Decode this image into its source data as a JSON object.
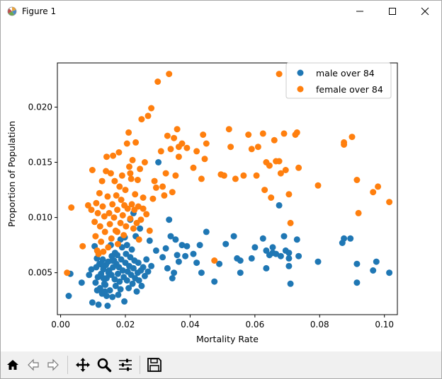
{
  "window": {
    "title": "Figure 1",
    "icons": {
      "minimize": "minimize-icon",
      "maximize": "maximize-icon",
      "close": "close-icon"
    }
  },
  "toolbar": {
    "buttons": [
      {
        "name": "home-button",
        "icon": "home-icon"
      },
      {
        "name": "back-button",
        "icon": "back-arrow-icon"
      },
      {
        "name": "forward-button",
        "icon": "forward-arrow-icon"
      },
      {
        "name": "pan-button",
        "icon": "pan-move-icon"
      },
      {
        "name": "zoom-button",
        "icon": "zoom-magnifier-icon"
      },
      {
        "name": "configure-subplots-button",
        "icon": "sliders-icon"
      },
      {
        "name": "save-button",
        "icon": "save-disk-icon"
      }
    ]
  },
  "chart_data": {
    "type": "scatter",
    "title": "",
    "xlabel": "Mortality Rate",
    "ylabel": "Proportion of Population",
    "xlim": [
      -0.001,
      0.104
    ],
    "ylim": [
      0.0012,
      0.024
    ],
    "xticks": [
      0.0,
      0.02,
      0.04,
      0.06,
      0.08,
      0.1
    ],
    "xtick_labels": [
      "0.00",
      "0.02",
      "0.04",
      "0.06",
      "0.08",
      "0.10"
    ],
    "yticks": [
      0.005,
      0.01,
      0.015,
      0.02
    ],
    "ytick_labels": [
      "0.005",
      "0.010",
      "0.015",
      "0.020"
    ],
    "grid": false,
    "legend": "top-right",
    "series": [
      {
        "name": "male over 84",
        "color": "#1f77b4",
        "points": [
          [
            0.0025,
            0.0029
          ],
          [
            0.003,
            0.0049
          ],
          [
            0.0065,
            0.0041
          ],
          [
            0.0088,
            0.0048
          ],
          [
            0.0095,
            0.0053
          ],
          [
            0.0098,
            0.0023
          ],
          [
            0.0105,
            0.0074
          ],
          [
            0.0108,
            0.0041
          ],
          [
            0.011,
            0.0055
          ],
          [
            0.0113,
            0.0034
          ],
          [
            0.0115,
            0.0046
          ],
          [
            0.0117,
            0.0021
          ],
          [
            0.012,
            0.0058
          ],
          [
            0.0122,
            0.0036
          ],
          [
            0.0125,
            0.0049
          ],
          [
            0.0128,
            0.0031
          ],
          [
            0.013,
            0.0062
          ],
          [
            0.0132,
            0.0053
          ],
          [
            0.0135,
            0.004
          ],
          [
            0.0137,
            0.0033
          ],
          [
            0.014,
            0.0057
          ],
          [
            0.0142,
            0.0045
          ],
          [
            0.0145,
            0.002
          ],
          [
            0.0147,
            0.006
          ],
          [
            0.015,
            0.0052
          ],
          [
            0.0152,
            0.0034
          ],
          [
            0.0155,
            0.0075
          ],
          [
            0.0157,
            0.0048
          ],
          [
            0.016,
            0.0028
          ],
          [
            0.0162,
            0.0055
          ],
          [
            0.0165,
            0.0061
          ],
          [
            0.0167,
            0.0044
          ],
          [
            0.017,
            0.0038
          ],
          [
            0.0172,
            0.0058
          ],
          [
            0.0175,
            0.0066
          ],
          [
            0.0177,
            0.0049
          ],
          [
            0.018,
            0.0055
          ],
          [
            0.0182,
            0.0042
          ],
          [
            0.0185,
            0.0035
          ],
          [
            0.0187,
            0.0062
          ],
          [
            0.019,
            0.0073
          ],
          [
            0.0192,
            0.0052
          ],
          [
            0.0195,
            0.0046
          ],
          [
            0.0197,
            0.0024
          ],
          [
            0.02,
            0.0059
          ],
          [
            0.0202,
            0.0067
          ],
          [
            0.0205,
            0.0043
          ],
          [
            0.0207,
            0.0051
          ],
          [
            0.021,
            0.0036
          ],
          [
            0.0212,
            0.0056
          ],
          [
            0.0215,
            0.0064
          ],
          [
            0.0218,
            0.0048
          ],
          [
            0.022,
            0.0071
          ],
          [
            0.0222,
            0.004
          ],
          [
            0.0225,
            0.0054
          ],
          [
            0.0228,
            0.0061
          ],
          [
            0.023,
            0.0045
          ],
          [
            0.0232,
            0.0083
          ],
          [
            0.0235,
            0.0033
          ],
          [
            0.0238,
            0.005
          ],
          [
            0.024,
            0.0059
          ],
          [
            0.0242,
            0.0043
          ],
          [
            0.0245,
            0.009
          ],
          [
            0.0248,
            0.0052
          ],
          [
            0.025,
            0.0038
          ],
          [
            0.0255,
            0.0055
          ],
          [
            0.026,
            0.0047
          ],
          [
            0.0265,
            0.0062
          ],
          [
            0.027,
            0.0051
          ],
          [
            0.0275,
            0.0079
          ],
          [
            0.028,
            0.0056
          ],
          [
            0.0185,
            0.008
          ],
          [
            0.0205,
            0.0075
          ],
          [
            0.0215,
            0.0098
          ],
          [
            0.0225,
            0.0104
          ],
          [
            0.016,
            0.0061
          ],
          [
            0.0148,
            0.005
          ],
          [
            0.0132,
            0.0045
          ],
          [
            0.0168,
            0.0068
          ],
          [
            0.0138,
            0.0039
          ],
          [
            0.0198,
            0.0082
          ],
          [
            0.0178,
            0.003
          ],
          [
            0.0158,
            0.0065
          ],
          [
            0.0112,
            0.0063
          ],
          [
            0.0128,
            0.0057
          ],
          [
            0.0142,
            0.0029
          ],
          [
            0.0302,
            0.015
          ],
          [
            0.0315,
            0.0064
          ],
          [
            0.033,
            0.0054
          ],
          [
            0.0335,
            0.0098
          ],
          [
            0.034,
            0.0083
          ],
          [
            0.0345,
            0.0045
          ],
          [
            0.035,
            0.005
          ],
          [
            0.0355,
            0.008
          ],
          [
            0.036,
            0.0066
          ],
          [
            0.0375,
            0.0075
          ],
          [
            0.039,
            0.0074
          ],
          [
            0.041,
            0.0067
          ],
          [
            0.042,
            0.0059
          ],
          [
            0.043,
            0.0075
          ],
          [
            0.0435,
            0.005
          ],
          [
            0.045,
            0.0087
          ],
          [
            0.0475,
            0.0042
          ],
          [
            0.049,
            0.0058
          ],
          [
            0.051,
            0.0076
          ],
          [
            0.0535,
            0.0083
          ],
          [
            0.0545,
            0.0063
          ],
          [
            0.0555,
            0.0061
          ],
          [
            0.0555,
            0.005
          ],
          [
            0.059,
            0.0063
          ],
          [
            0.06,
            0.0073
          ],
          [
            0.0625,
            0.0081
          ],
          [
            0.0635,
            0.0054
          ],
          [
            0.0635,
            0.007
          ],
          [
            0.0645,
            0.0066
          ],
          [
            0.0655,
            0.0073
          ],
          [
            0.0665,
            0.0067
          ],
          [
            0.0675,
            0.0111
          ],
          [
            0.068,
            0.0065
          ],
          [
            0.069,
            0.0083
          ],
          [
            0.0695,
            0.007
          ],
          [
            0.0705,
            0.0063
          ],
          [
            0.071,
            0.004
          ],
          [
            0.073,
            0.008
          ],
          [
            0.0735,
            0.0065
          ],
          [
            0.0795,
            0.006
          ],
          [
            0.087,
            0.0077
          ],
          [
            0.0875,
            0.0081
          ],
          [
            0.0895,
            0.0081
          ],
          [
            0.0915,
            0.0058
          ],
          [
            0.0915,
            0.0041
          ],
          [
            0.0965,
            0.0052
          ],
          [
            0.0975,
            0.006
          ],
          [
            0.1015,
            0.005
          ],
          [
            0.0705,
            0.0056
          ],
          [
            0.0655,
            0.0068
          ],
          [
            0.0705,
            0.0068
          ],
          [
            0.0295,
            0.007
          ],
          [
            0.0325,
            0.0072
          ],
          [
            0.0365,
            0.006
          ],
          [
            0.0385,
            0.0065
          ]
        ]
      },
      {
        "name": "female over 84",
        "color": "#ff7f0e",
        "points": [
          [
            0.002,
            0.005
          ],
          [
            0.0033,
            0.0109
          ],
          [
            0.0068,
            0.0074
          ],
          [
            0.0085,
            0.0111
          ],
          [
            0.0095,
            0.0107
          ],
          [
            0.0098,
            0.0143
          ],
          [
            0.0105,
            0.0096
          ],
          [
            0.0108,
            0.0083
          ],
          [
            0.011,
            0.0113
          ],
          [
            0.0113,
            0.007
          ],
          [
            0.0115,
            0.0104
          ],
          [
            0.0117,
            0.0067
          ],
          [
            0.012,
            0.0122
          ],
          [
            0.0122,
            0.0092
          ],
          [
            0.0125,
            0.0078
          ],
          [
            0.0128,
            0.0133
          ],
          [
            0.013,
            0.011
          ],
          [
            0.0132,
            0.0069
          ],
          [
            0.0135,
            0.0101
          ],
          [
            0.0137,
            0.0087
          ],
          [
            0.014,
            0.0142
          ],
          [
            0.0142,
            0.0155
          ],
          [
            0.0145,
            0.0119
          ],
          [
            0.0147,
            0.0073
          ],
          [
            0.015,
            0.0104
          ],
          [
            0.0152,
            0.0094
          ],
          [
            0.0155,
            0.014
          ],
          [
            0.0157,
            0.0081
          ],
          [
            0.016,
            0.0112
          ],
          [
            0.0162,
            0.0156
          ],
          [
            0.0165,
            0.01
          ],
          [
            0.0167,
            0.0133
          ],
          [
            0.017,
            0.0088
          ],
          [
            0.0172,
            0.012
          ],
          [
            0.0175,
            0.0107
          ],
          [
            0.0177,
            0.0076
          ],
          [
            0.018,
            0.0159
          ],
          [
            0.0182,
            0.0128
          ],
          [
            0.0185,
            0.0095
          ],
          [
            0.0187,
            0.0116
          ],
          [
            0.019,
            0.0138
          ],
          [
            0.0192,
            0.0102
          ],
          [
            0.0195,
            0.0084
          ],
          [
            0.0197,
            0.0111
          ],
          [
            0.02,
            0.0125
          ],
          [
            0.0202,
            0.0092
          ],
          [
            0.0205,
            0.0167
          ],
          [
            0.0207,
            0.0108
          ],
          [
            0.021,
            0.0177
          ],
          [
            0.0212,
            0.0146
          ],
          [
            0.0215,
            0.0099
          ],
          [
            0.0218,
            0.0135
          ],
          [
            0.022,
            0.0112
          ],
          [
            0.0222,
            0.0152
          ],
          [
            0.0225,
            0.009
          ],
          [
            0.0228,
            0.0107
          ],
          [
            0.023,
            0.0121
          ],
          [
            0.0232,
            0.0168
          ],
          [
            0.0235,
            0.0095
          ],
          [
            0.0238,
            0.0134
          ],
          [
            0.024,
            0.011
          ],
          [
            0.0242,
            0.008
          ],
          [
            0.0245,
            0.0144
          ],
          [
            0.0248,
            0.0098
          ],
          [
            0.025,
            0.0189
          ],
          [
            0.0255,
            0.0118
          ],
          [
            0.026,
            0.015
          ],
          [
            0.0265,
            0.0103
          ],
          [
            0.027,
            0.0192
          ],
          [
            0.0275,
            0.0088
          ],
          [
            0.028,
            0.0199
          ],
          [
            0.0285,
            0.0117
          ],
          [
            0.029,
            0.0133
          ],
          [
            0.0295,
            0.0127
          ],
          [
            0.03,
            0.0223
          ],
          [
            0.031,
            0.016
          ],
          [
            0.0315,
            0.0128
          ],
          [
            0.032,
            0.012
          ],
          [
            0.0325,
            0.014
          ],
          [
            0.033,
            0.0174
          ],
          [
            0.0335,
            0.023
          ],
          [
            0.034,
            0.0162
          ],
          [
            0.0345,
            0.0123
          ],
          [
            0.035,
            0.0172
          ],
          [
            0.0355,
            0.0138
          ],
          [
            0.036,
            0.018
          ],
          [
            0.0365,
            0.0164
          ],
          [
            0.0375,
            0.0167
          ],
          [
            0.039,
            0.0163
          ],
          [
            0.041,
            0.0145
          ],
          [
            0.042,
            0.016
          ],
          [
            0.0435,
            0.0135
          ],
          [
            0.044,
            0.0175
          ],
          [
            0.045,
            0.0167
          ],
          [
            0.0475,
            0.0061
          ],
          [
            0.0495,
            0.0139
          ],
          [
            0.0505,
            0.0138
          ],
          [
            0.052,
            0.018
          ],
          [
            0.0525,
            0.0164
          ],
          [
            0.054,
            0.0135
          ],
          [
            0.0565,
            0.0138
          ],
          [
            0.058,
            0.0175
          ],
          [
            0.059,
            0.0162
          ],
          [
            0.061,
            0.0164
          ],
          [
            0.0625,
            0.0176
          ],
          [
            0.063,
            0.0125
          ],
          [
            0.0635,
            0.015
          ],
          [
            0.0645,
            0.0147
          ],
          [
            0.065,
            0.0118
          ],
          [
            0.066,
            0.017
          ],
          [
            0.0665,
            0.0151
          ],
          [
            0.0675,
            0.023
          ],
          [
            0.0675,
            0.0151
          ],
          [
            0.068,
            0.014
          ],
          [
            0.069,
            0.0176
          ],
          [
            0.0695,
            0.0143
          ],
          [
            0.0705,
            0.0121
          ],
          [
            0.071,
            0.0095
          ],
          [
            0.0725,
            0.0175
          ],
          [
            0.073,
            0.0177
          ],
          [
            0.0735,
            0.0145
          ],
          [
            0.0795,
            0.0129
          ],
          [
            0.0875,
            0.0168
          ],
          [
            0.0875,
            0.0166
          ],
          [
            0.09,
            0.0173
          ],
          [
            0.0915,
            0.0134
          ],
          [
            0.092,
            0.0104
          ],
          [
            0.0965,
            0.0123
          ],
          [
            0.098,
            0.0128
          ],
          [
            0.1015,
            0.0114
          ],
          [
            0.0605,
            0.0138
          ],
          [
            0.0445,
            0.0153
          ],
          [
            0.0365,
            0.0155
          ],
          [
            0.0255,
            0.0108
          ],
          [
            0.0215,
            0.014
          ],
          [
            0.0175,
            0.0087
          ]
        ]
      }
    ]
  }
}
